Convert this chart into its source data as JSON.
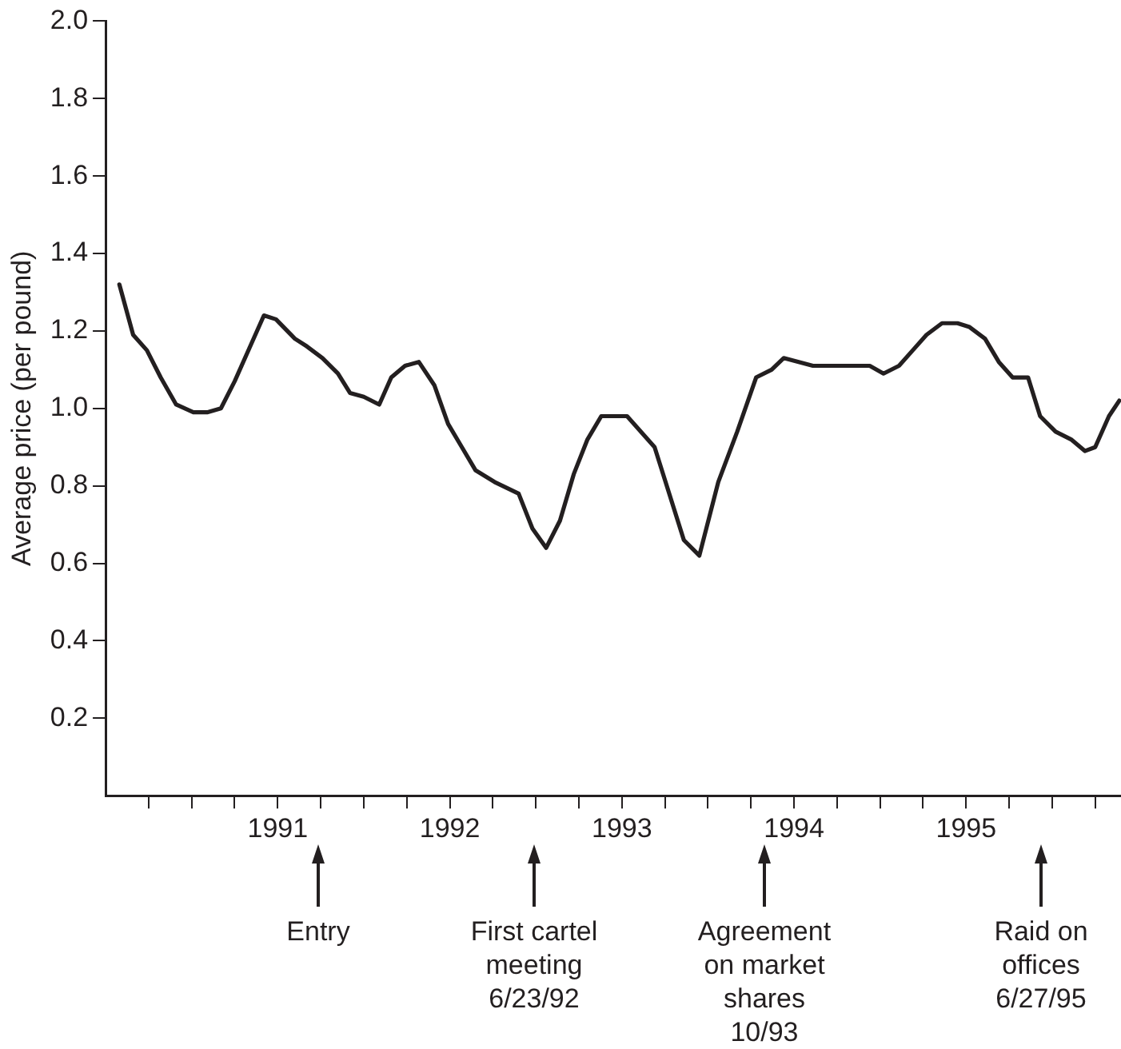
{
  "chart_data": {
    "type": "line",
    "ylabel": "Average price (per pound)",
    "x": [
      1990.08,
      1990.16,
      1990.24,
      1990.32,
      1990.41,
      1990.51,
      1990.59,
      1990.67,
      1990.75,
      1990.84,
      1990.92,
      1990.99,
      1991.1,
      1991.17,
      1991.26,
      1991.35,
      1991.42,
      1991.5,
      1991.59,
      1991.66,
      1991.74,
      1991.82,
      1991.91,
      1991.99,
      1992.07,
      1992.15,
      1992.26,
      1992.4,
      1992.48,
      1992.56,
      1992.64,
      1992.72,
      1992.8,
      1992.88,
      1993.03,
      1993.19,
      1993.36,
      1993.45,
      1993.56,
      1993.67,
      1993.78,
      1993.87,
      1993.94,
      1994.11,
      1994.44,
      1994.52,
      1994.61,
      1994.69,
      1994.77,
      1994.86,
      1994.95,
      1995.02,
      1995.11,
      1995.19,
      1995.27,
      1995.36,
      1995.43,
      1995.52,
      1995.61,
      1995.69,
      1995.75,
      1995.83,
      1995.89
    ],
    "series": [
      {
        "color": "#231f20",
        "values": [
          1.32,
          1.19,
          1.15,
          1.08,
          1.01,
          0.99,
          0.99,
          1.0,
          1.07,
          1.16,
          1.24,
          1.23,
          1.18,
          1.16,
          1.13,
          1.09,
          1.04,
          1.03,
          1.01,
          1.08,
          1.11,
          1.12,
          1.06,
          0.96,
          0.9,
          0.84,
          0.81,
          0.78,
          0.69,
          0.64,
          0.71,
          0.83,
          0.92,
          0.98,
          0.98,
          0.9,
          0.66,
          0.62,
          0.81,
          0.94,
          1.08,
          1.1,
          1.13,
          1.11,
          1.11,
          1.09,
          1.11,
          1.15,
          1.19,
          1.22,
          1.22,
          1.21,
          1.18,
          1.12,
          1.08,
          1.08,
          0.98,
          0.94,
          0.92,
          0.89,
          0.9,
          0.98,
          1.02
        ]
      }
    ],
    "xlim": [
      1990,
      1995.9
    ],
    "xticks": [
      {
        "value": 1990.25,
        "label": null
      },
      {
        "value": 1990.5,
        "label": null
      },
      {
        "value": 1990.75,
        "label": null
      },
      1991,
      {
        "value": 1991.25,
        "label": null
      },
      {
        "value": 1991.5,
        "label": null
      },
      {
        "value": 1991.75,
        "label": null
      },
      1992,
      {
        "value": 1992.25,
        "label": null
      },
      {
        "value": 1992.5,
        "label": null
      },
      {
        "value": 1992.75,
        "label": null
      },
      1993,
      {
        "value": 1993.25,
        "label": null
      },
      {
        "value": 1993.5,
        "label": null
      },
      {
        "value": 1993.75,
        "label": null
      },
      1994,
      {
        "value": 1994.25,
        "label": null
      },
      {
        "value": 1994.5,
        "label": null
      },
      {
        "value": 1994.75,
        "label": null
      },
      1995,
      {
        "value": 1995.25,
        "label": null
      },
      {
        "value": 1995.5,
        "label": null
      },
      {
        "value": 1995.75,
        "label": null
      }
    ],
    "ylim": [
      0,
      2.0
    ],
    "yticks": [
      0.2,
      0.4,
      0.6,
      0.8,
      {
        "value": 1,
        "label": "1.0"
      },
      1.2,
      1.4,
      1.6,
      1.8,
      {
        "value": 2,
        "label": "2.0"
      }
    ],
    "grid": false,
    "legend": false,
    "marker": "none",
    "line_style": "solid",
    "annotations": [
      "Entry",
      "First cartel\nmeeting\n6/23/92",
      "Agreement\non market\nshares\n10/93",
      "Raid on\noffices\n6/27/95"
    ]
  }
}
